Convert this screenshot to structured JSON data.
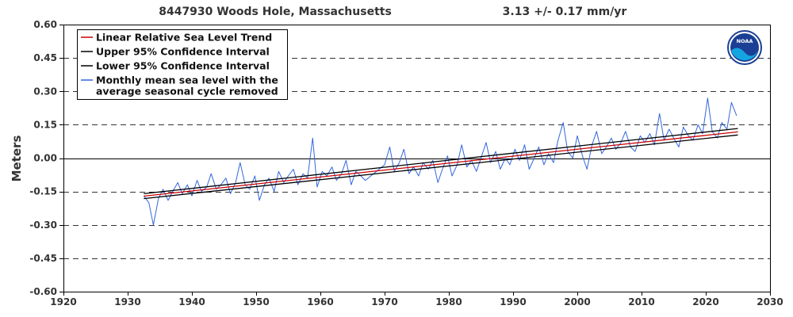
{
  "header": {
    "station": "8447930 Woods Hole, Massachusetts",
    "trend": "3.13 +/-  0.17 mm/yr"
  },
  "logo": {
    "text": "NOAA"
  },
  "chart_data": {
    "type": "line",
    "title": "8447930 Woods Hole, Massachusetts",
    "subtitle": "3.13 +/-  0.17 mm/yr",
    "xlabel": "",
    "ylabel": "Meters",
    "xlim": [
      1920,
      2030
    ],
    "ylim": [
      -0.6,
      0.6
    ],
    "xticks": [
      "1920",
      "1930",
      "1940",
      "1950",
      "1960",
      "1970",
      "1980",
      "1990",
      "2000",
      "2010",
      "2020",
      "2030"
    ],
    "yticks": [
      "0.60",
      "0.45",
      "0.30",
      "0.15",
      "0.00",
      "-0.15",
      "-0.30",
      "-0.45",
      "-0.60"
    ],
    "grid": "dashed horizontal",
    "legend_position": "top-left",
    "legend": [
      "Linear Relative Sea Level Trend",
      "Upper 95% Confidence Interval",
      "Lower 95% Confidence Interval",
      "Monthly mean sea level with the",
      "average seasonal cycle removed"
    ],
    "series": [
      {
        "name": "Linear Relative Sea Level Trend",
        "color": "#cc0000",
        "x": [
          1932.5,
          2025.0
        ],
        "y": [
          -0.171,
          0.118
        ]
      },
      {
        "name": "Upper 95% Confidence Interval",
        "color": "#000000",
        "x": [
          1932.5,
          2025.0
        ],
        "y": [
          -0.16,
          0.133
        ]
      },
      {
        "name": "Lower 95% Confidence Interval",
        "color": "#000000",
        "x": [
          1932.5,
          2025.0
        ],
        "y": [
          -0.182,
          0.104
        ]
      },
      {
        "name": "Monthly mean sea level with the average seasonal cycle removed",
        "color": "#3366dd",
        "x": [
          1932.5,
          1933.3,
          1934.0,
          1934.8,
          1935.5,
          1936.3,
          1937.0,
          1937.8,
          1938.5,
          1939.3,
          1940.0,
          1940.8,
          1941.5,
          1942.3,
          1943.0,
          1943.8,
          1944.5,
          1945.3,
          1946.0,
          1946.8,
          1947.5,
          1948.3,
          1949.0,
          1949.8,
          1950.5,
          1951.3,
          1952.0,
          1952.8,
          1953.5,
          1954.3,
          1955.0,
          1955.8,
          1956.5,
          1957.3,
          1958.0,
          1958.8,
          1959.5,
          1960.3,
          1961.0,
          1961.8,
          1962.5,
          1963.3,
          1964.0,
          1964.8,
          1965.5,
          1966.3,
          1967.0,
          1970.0,
          1970.8,
          1971.5,
          1972.3,
          1973.0,
          1973.8,
          1974.5,
          1975.3,
          1976.0,
          1976.8,
          1977.5,
          1978.3,
          1979.0,
          1979.8,
          1980.5,
          1981.3,
          1982.0,
          1982.8,
          1983.5,
          1984.3,
          1985.0,
          1985.8,
          1986.5,
          1987.3,
          1988.0,
          1988.8,
          1989.5,
          1990.3,
          1991.0,
          1991.8,
          1992.5,
          1993.3,
          1994.0,
          1994.8,
          1995.5,
          1996.3,
          1997.0,
          1997.8,
          1998.5,
          1999.3,
          2000.0,
          2000.8,
          2001.5,
          2002.3,
          2003.0,
          2003.8,
          2004.5,
          2005.3,
          2006.0,
          2006.8,
          2007.5,
          2008.3,
          2009.0,
          2009.8,
          2010.5,
          2011.3,
          2012.0,
          2012.8,
          2013.5,
          2014.3,
          2015.0,
          2015.8,
          2016.5,
          2017.3,
          2018.0,
          2018.8,
          2019.5,
          2020.3,
          2021.0,
          2021.8,
          2022.5,
          2023.3,
          2024.0,
          2024.8
        ],
        "y": [
          -0.17,
          -0.2,
          -0.3,
          -0.18,
          -0.14,
          -0.19,
          -0.15,
          -0.11,
          -0.16,
          -0.12,
          -0.17,
          -0.1,
          -0.15,
          -0.13,
          -0.07,
          -0.14,
          -0.12,
          -0.09,
          -0.16,
          -0.11,
          -0.02,
          -0.12,
          -0.14,
          -0.08,
          -0.19,
          -0.12,
          -0.09,
          -0.15,
          -0.06,
          -0.11,
          -0.08,
          -0.05,
          -0.12,
          -0.07,
          -0.09,
          0.09,
          -0.13,
          -0.06,
          -0.08,
          -0.04,
          -0.1,
          -0.07,
          -0.01,
          -0.12,
          -0.06,
          -0.08,
          -0.1,
          -0.03,
          0.05,
          -0.06,
          -0.02,
          0.04,
          -0.07,
          -0.04,
          -0.08,
          -0.02,
          -0.05,
          -0.01,
          -0.11,
          -0.05,
          0.01,
          -0.08,
          -0.03,
          0.06,
          -0.04,
          -0.01,
          -0.06,
          0.0,
          0.07,
          -0.02,
          0.03,
          -0.05,
          0.0,
          -0.03,
          0.04,
          -0.01,
          0.06,
          -0.05,
          0.0,
          0.05,
          -0.03,
          0.02,
          -0.02,
          0.08,
          0.16,
          0.03,
          0.0,
          0.1,
          0.01,
          -0.05,
          0.06,
          0.12,
          0.02,
          0.05,
          0.09,
          0.04,
          0.07,
          0.12,
          0.05,
          0.03,
          0.1,
          0.07,
          0.11,
          0.06,
          0.2,
          0.08,
          0.13,
          0.09,
          0.05,
          0.14,
          0.1,
          0.08,
          0.15,
          0.11,
          0.27,
          0.12,
          0.09,
          0.16,
          0.13,
          0.25,
          0.19
        ]
      }
    ]
  }
}
